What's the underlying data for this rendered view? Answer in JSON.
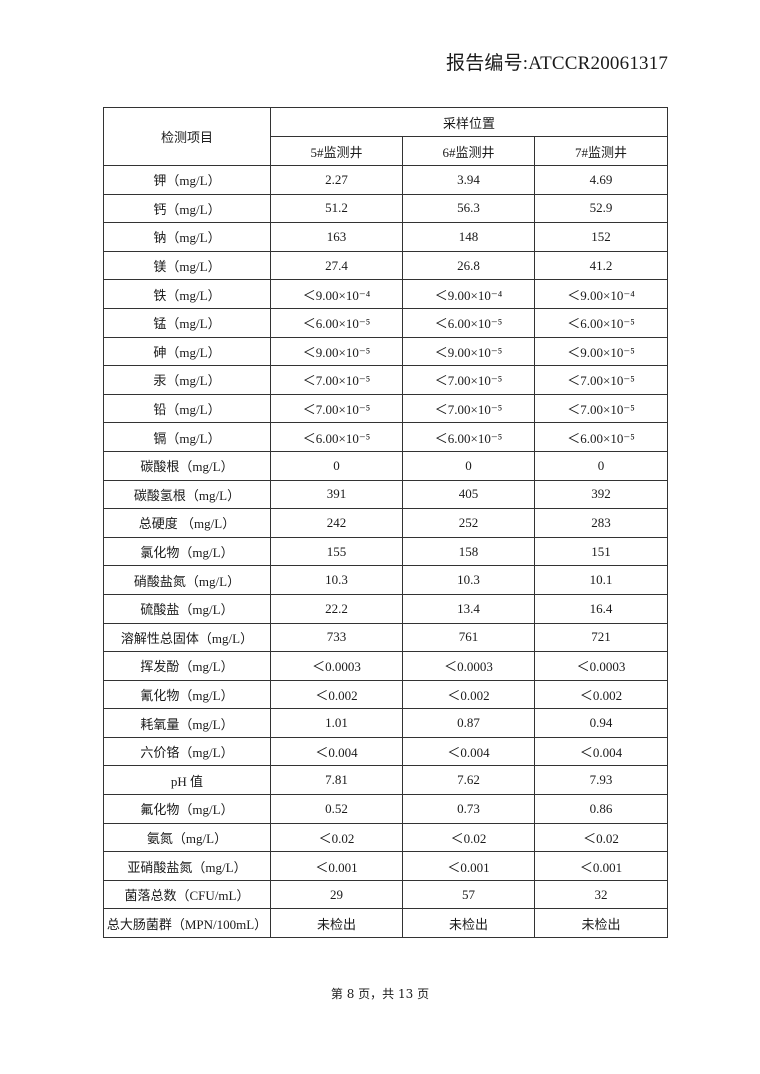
{
  "report_number": "报告编号:ATCCR20061317",
  "table": {
    "item_header": "检测项目",
    "group_header": "采样位置",
    "locations": [
      "5#监测井",
      "6#监测井",
      "7#监测井"
    ],
    "rows": [
      {
        "item": "钾（mg/L）",
        "values": [
          "2.27",
          "3.94",
          "4.69"
        ]
      },
      {
        "item": "钙（mg/L）",
        "values": [
          "51.2",
          "56.3",
          "52.9"
        ]
      },
      {
        "item": "钠（mg/L）",
        "values": [
          "163",
          "148",
          "152"
        ]
      },
      {
        "item": "镁（mg/L）",
        "values": [
          "27.4",
          "26.8",
          "41.2"
        ]
      },
      {
        "item": "铁（mg/L）",
        "values": [
          "＜9.00×10⁻⁴",
          "＜9.00×10⁻⁴",
          "＜9.00×10⁻⁴"
        ]
      },
      {
        "item": "锰（mg/L）",
        "values": [
          "＜6.00×10⁻⁵",
          "＜6.00×10⁻⁵",
          "＜6.00×10⁻⁵"
        ]
      },
      {
        "item": "砷（mg/L）",
        "values": [
          "＜9.00×10⁻⁵",
          "＜9.00×10⁻⁵",
          "＜9.00×10⁻⁵"
        ]
      },
      {
        "item": "汞（mg/L）",
        "values": [
          "＜7.00×10⁻⁵",
          "＜7.00×10⁻⁵",
          "＜7.00×10⁻⁵"
        ]
      },
      {
        "item": "铅（mg/L）",
        "values": [
          "＜7.00×10⁻⁵",
          "＜7.00×10⁻⁵",
          "＜7.00×10⁻⁵"
        ]
      },
      {
        "item": "镉（mg/L）",
        "values": [
          "＜6.00×10⁻⁵",
          "＜6.00×10⁻⁵",
          "＜6.00×10⁻⁵"
        ]
      },
      {
        "item": "碳酸根（mg/L）",
        "values": [
          "0",
          "0",
          "0"
        ]
      },
      {
        "item": "碳酸氢根（mg/L）",
        "values": [
          "391",
          "405",
          "392"
        ]
      },
      {
        "item": "总硬度 （mg/L）",
        "values": [
          "242",
          "252",
          "283"
        ]
      },
      {
        "item": "氯化物（mg/L）",
        "values": [
          "155",
          "158",
          "151"
        ]
      },
      {
        "item": "硝酸盐氮（mg/L）",
        "values": [
          "10.3",
          "10.3",
          "10.1"
        ]
      },
      {
        "item": "硫酸盐（mg/L）",
        "values": [
          "22.2",
          "13.4",
          "16.4"
        ]
      },
      {
        "item": "溶解性总固体（mg/L）",
        "values": [
          "733",
          "761",
          "721"
        ]
      },
      {
        "item": "挥发酚（mg/L）",
        "values": [
          "＜0.0003",
          "＜0.0003",
          "＜0.0003"
        ]
      },
      {
        "item": "氰化物（mg/L）",
        "values": [
          "＜0.002",
          "＜0.002",
          "＜0.002"
        ]
      },
      {
        "item": "耗氧量（mg/L）",
        "values": [
          "1.01",
          "0.87",
          "0.94"
        ]
      },
      {
        "item": "六价铬（mg/L）",
        "values": [
          "＜0.004",
          "＜0.004",
          "＜0.004"
        ]
      },
      {
        "item": "pH 值",
        "values": [
          "7.81",
          "7.62",
          "7.93"
        ]
      },
      {
        "item": "氟化物（mg/L）",
        "values": [
          "0.52",
          "0.73",
          "0.86"
        ]
      },
      {
        "item": "氨氮（mg/L）",
        "values": [
          "＜0.02",
          "＜0.02",
          "＜0.02"
        ]
      },
      {
        "item": "亚硝酸盐氮（mg/L）",
        "values": [
          "＜0.001",
          "＜0.001",
          "＜0.001"
        ]
      },
      {
        "item": "菌落总数（CFU/mL）",
        "values": [
          "29",
          "57",
          "32"
        ]
      },
      {
        "item": "总大肠菌群（MPN/100mL）",
        "values": [
          "未检出",
          "未检出",
          "未检出"
        ]
      }
    ]
  },
  "footer": "第 8 页，共 13 页"
}
